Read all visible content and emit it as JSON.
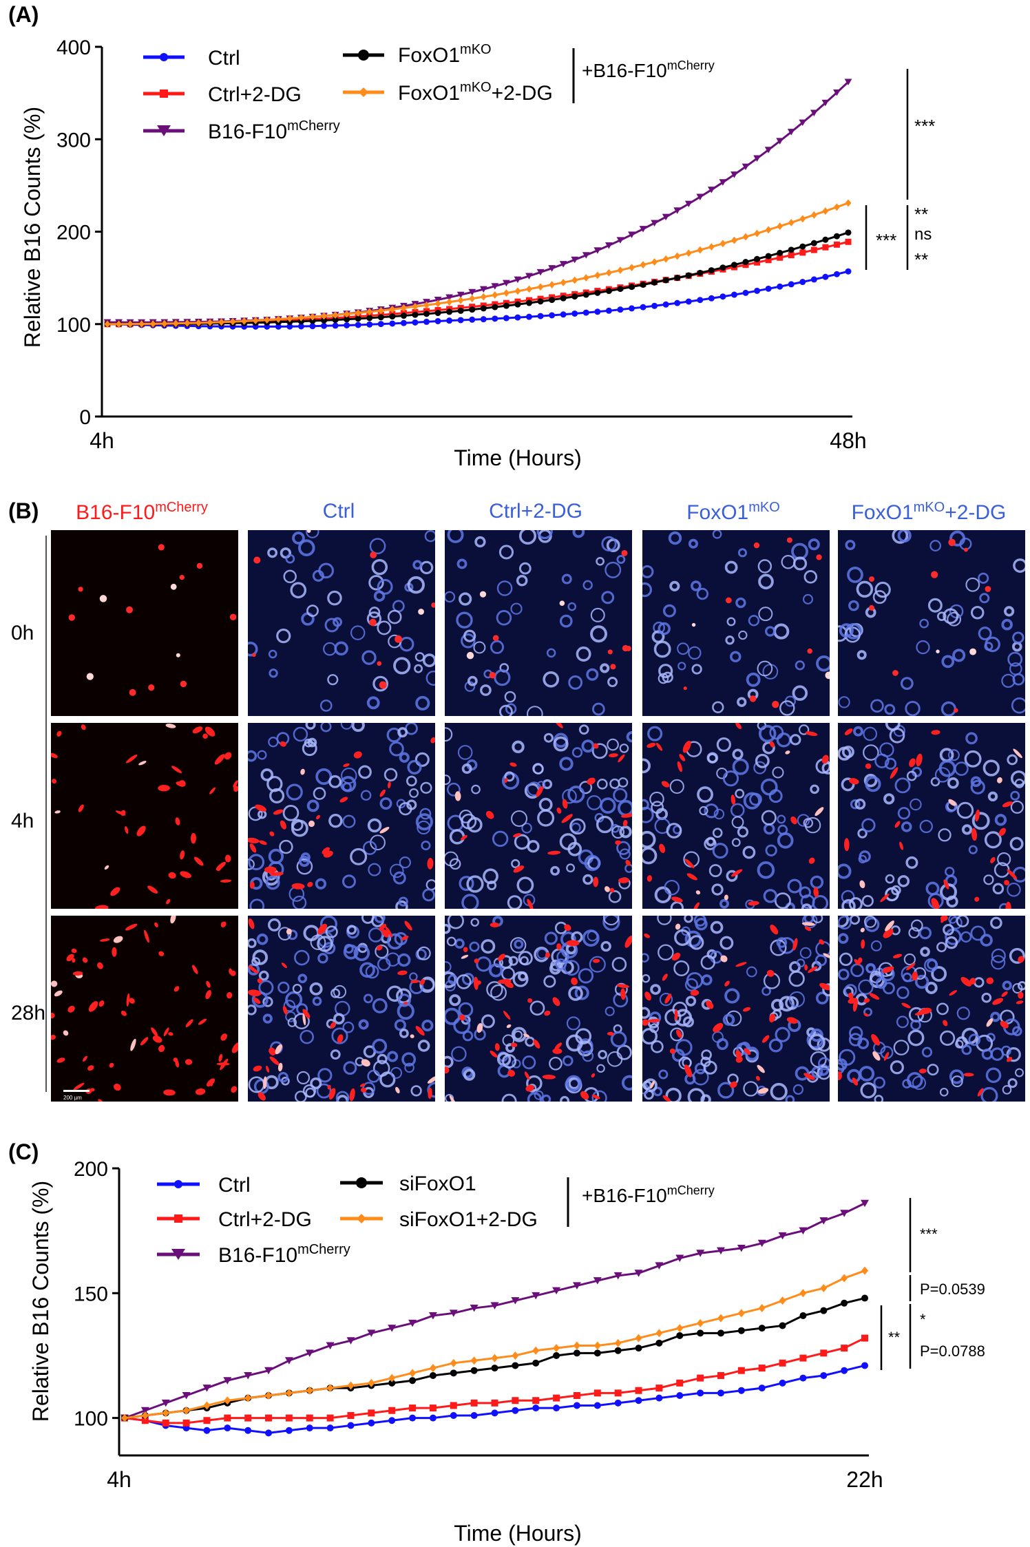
{
  "panelA": {
    "label": "(A)",
    "chart_data": {
      "type": "line",
      "xlabel": "Time (Hours)",
      "ylabel": "Relative B16 Counts (%)",
      "x_tick_labels": [
        "4h",
        "48h"
      ],
      "y_ticks": [
        0,
        100,
        200,
        300,
        400
      ],
      "ylim": [
        0,
        400
      ],
      "xrange": [
        4,
        48
      ],
      "n_points": 66,
      "series": [
        {
          "name": "Ctrl",
          "color": "#1010ff",
          "marker": "circle",
          "endpoint_values": [
            100,
            157
          ],
          "curvature": 3.5,
          "min_dip": 97
        },
        {
          "name": "Ctrl+2-DG",
          "color": "#ff1a1a",
          "marker": "square",
          "endpoint_values": [
            100,
            189
          ],
          "curvature": 2.2
        },
        {
          "name": "B16-F10",
          "name_sup": "mCherry",
          "color": "#6a0f7a",
          "marker": "triangle-down",
          "endpoint_values": [
            100,
            362
          ],
          "curvature": 2.9,
          "start_offset": 2
        },
        {
          "name": "FoxO1",
          "name_sup": "mKO",
          "color": "#000000",
          "marker": "circle",
          "endpoint_values": [
            100,
            199
          ],
          "curvature": 2.6
        },
        {
          "name": "FoxO1",
          "name_sup": "mKO",
          "name_suffix": "+2-DG",
          "color": "#ff8c1a",
          "marker": "diamond",
          "endpoint_values": [
            100,
            231
          ],
          "curvature": 2.2
        }
      ],
      "legend": {
        "position": "top-left",
        "group_label": "+B16-F10",
        "group_sup": "mCherry"
      },
      "annotations": [
        "***",
        "**",
        "ns",
        "**",
        "***"
      ]
    }
  },
  "panelB": {
    "label": "(B)",
    "columns": [
      {
        "title": "B16-F10",
        "sup": "mCherry",
        "color": "#ff1a1a",
        "blue": false
      },
      {
        "title": "Ctrl",
        "sup": "",
        "color": "#3a5fd8",
        "blue": true
      },
      {
        "title": "Ctrl+2-DG",
        "sup": "",
        "color": "#3a5fd8",
        "blue": true
      },
      {
        "title": "FoxO1",
        "sup": "mKO",
        "color": "#3a5fd8",
        "blue": true
      },
      {
        "title": "FoxO1",
        "sup": "mKO",
        "suffix": "+2-DG",
        "color": "#3a5fd8",
        "blue": true
      }
    ],
    "rows": [
      "0h",
      "4h",
      "28h"
    ],
    "scale_bar": "200 µm"
  },
  "panelC": {
    "label": "(C)",
    "chart_data": {
      "type": "line",
      "xlabel": "Time (Hours)",
      "ylabel": "Relative B16 Counts (%)",
      "x_tick_labels": [
        "4h",
        "22h"
      ],
      "y_ticks": [
        100,
        150,
        200
      ],
      "ylim": [
        85,
        200
      ],
      "xrange": [
        4,
        22
      ],
      "n_points": 37,
      "series": [
        {
          "name": "Ctrl",
          "color": "#1010ff",
          "marker": "circle",
          "values": [
            100,
            99,
            97,
            96,
            95,
            96,
            95,
            94,
            95,
            96,
            96,
            97,
            98,
            99,
            100,
            100,
            101,
            101,
            102,
            103,
            104,
            104,
            105,
            105,
            106,
            107,
            108,
            109,
            110,
            110,
            111,
            112,
            114,
            116,
            117,
            119,
            121
          ]
        },
        {
          "name": "Ctrl+2-DG",
          "color": "#ff1a1a",
          "marker": "square",
          "values": [
            100,
            99,
            98,
            98,
            99,
            100,
            100,
            100,
            100,
            100,
            100,
            101,
            102,
            103,
            104,
            104,
            105,
            106,
            106,
            107,
            107,
            108,
            109,
            110,
            110,
            111,
            112,
            114,
            116,
            117,
            119,
            120,
            122,
            124,
            126,
            128,
            132
          ]
        },
        {
          "name": "B16-F10",
          "name_sup": "mCherry",
          "color": "#6a0f7a",
          "marker": "triangle-down",
          "values": [
            100,
            103,
            106,
            109,
            112,
            115,
            117,
            119,
            123,
            126,
            129,
            131,
            134,
            136,
            138,
            141,
            142,
            144,
            145,
            147,
            149,
            151,
            153,
            155,
            157,
            158,
            161,
            164,
            166,
            167,
            168,
            170,
            173,
            175,
            179,
            182,
            186
          ]
        },
        {
          "name": "siFoxO1",
          "color": "#000000",
          "marker": "circle",
          "values": [
            100,
            101,
            102,
            103,
            104,
            106,
            108,
            109,
            110,
            111,
            112,
            112,
            113,
            114,
            115,
            117,
            118,
            119,
            120,
            121,
            122,
            125,
            126,
            126,
            127,
            128,
            130,
            133,
            134,
            134,
            135,
            136,
            137,
            141,
            143,
            146,
            148
          ]
        },
        {
          "name": "siFoxO1+2-DG",
          "color": "#ff8c1a",
          "marker": "diamond",
          "values": [
            100,
            101,
            102,
            103,
            105,
            107,
            108,
            109,
            110,
            111,
            112,
            113,
            114,
            116,
            118,
            120,
            122,
            123,
            124,
            125,
            127,
            128,
            129,
            129,
            130,
            132,
            134,
            136,
            138,
            140,
            142,
            144,
            147,
            150,
            152,
            156,
            159
          ]
        }
      ],
      "legend": {
        "position": "top-left",
        "group_label": "+B16-F10",
        "group_sup": "mCherry"
      },
      "annotations": [
        "***",
        "P=0.0539",
        "*",
        "P=0.0788",
        "**"
      ]
    }
  }
}
